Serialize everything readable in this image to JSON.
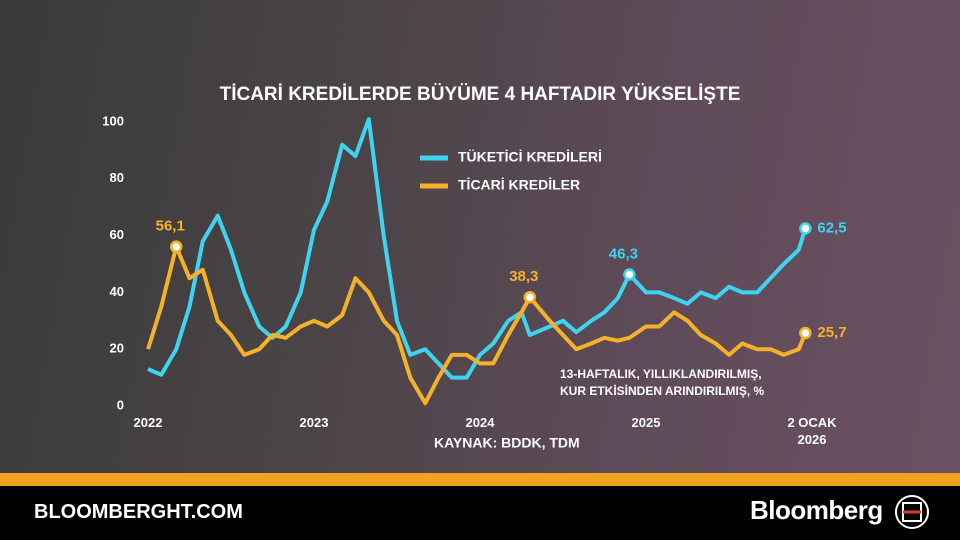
{
  "chart_data": {
    "type": "line",
    "title": "TİCARİ KREDİLERDE BÜYÜME 4 HAFTADIR YÜKSELİŞTE",
    "x": [
      2022.0,
      2022.08,
      2022.17,
      2022.25,
      2022.33,
      2022.42,
      2022.5,
      2022.58,
      2022.67,
      2022.75,
      2022.83,
      2022.92,
      2023.0,
      2023.08,
      2023.17,
      2023.25,
      2023.33,
      2023.42,
      2023.5,
      2023.58,
      2023.67,
      2023.75,
      2023.83,
      2023.92,
      2024.0,
      2024.08,
      2024.17,
      2024.25,
      2024.3,
      2024.42,
      2024.5,
      2024.58,
      2024.67,
      2024.75,
      2024.83,
      2024.9,
      2025.0,
      2025.08,
      2025.17,
      2025.25,
      2025.33,
      2025.42,
      2025.5,
      2025.58,
      2025.67,
      2025.75,
      2025.83,
      2025.92,
      2025.96
    ],
    "series": [
      {
        "name": "TÜKETİCİ KREDİLERİ",
        "color": "#3fd3f2",
        "values": [
          13,
          11,
          20,
          35,
          58,
          67,
          55,
          40,
          28,
          24,
          28,
          40,
          62,
          72,
          92,
          88,
          101,
          60,
          30,
          18,
          20,
          15,
          10,
          10,
          18,
          22,
          30,
          33,
          25,
          28,
          30,
          26,
          30,
          33,
          38,
          46.3,
          40,
          40,
          38,
          36,
          40,
          38,
          42,
          40,
          40,
          45,
          50,
          55,
          62.5
        ],
        "value_labels": [
          null,
          null,
          null,
          null,
          null,
          null,
          null,
          null,
          null,
          null,
          null,
          null,
          null,
          null,
          null,
          null,
          null,
          null,
          null,
          null,
          null,
          null,
          null,
          null,
          null,
          null,
          null,
          null,
          null,
          null,
          null,
          null,
          null,
          null,
          null,
          "46,3",
          null,
          null,
          null,
          null,
          null,
          null,
          null,
          null,
          null,
          null,
          null,
          null,
          "62,5"
        ]
      },
      {
        "name": "TİCARİ KREDİLER",
        "color": "#f5b228",
        "values": [
          20,
          35,
          56.1,
          45,
          48,
          30,
          25,
          18,
          20,
          25,
          24,
          28,
          30,
          28,
          32,
          45,
          40,
          30,
          25,
          10,
          1,
          10,
          18,
          18,
          15,
          15,
          25,
          33,
          38.3,
          30,
          25,
          20,
          22,
          24,
          23,
          24,
          28,
          28,
          33,
          30,
          25,
          22,
          18,
          22,
          20,
          20,
          18,
          20,
          25.7
        ],
        "value_labels": [
          null,
          null,
          "56,1",
          null,
          null,
          null,
          null,
          null,
          null,
          null,
          null,
          null,
          null,
          null,
          null,
          null,
          null,
          null,
          null,
          null,
          null,
          null,
          null,
          null,
          null,
          null,
          null,
          null,
          "38,3",
          null,
          null,
          null,
          null,
          null,
          null,
          null,
          null,
          null,
          null,
          null,
          null,
          null,
          null,
          null,
          null,
          null,
          null,
          null,
          "25,7"
        ]
      }
    ],
    "xlim": [
      2022,
      2026
    ],
    "xticks": [
      2022,
      2023,
      2024,
      2025,
      {
        "value": 2026,
        "label": "2 OCAK 2026"
      }
    ],
    "ylim": [
      0,
      100
    ],
    "yticks": [
      0,
      20,
      40,
      60,
      80,
      100
    ],
    "grid": false,
    "note": [
      "13-HAFTALIK, YILLIKLANDIRILMIŞ,",
      "KUR ETKİSİNDEN ARINDIRILMIŞ, %"
    ],
    "source": "KAYNAK: BDDK, TDM"
  },
  "footer": {
    "site": "BLOOMBERGHT.COM",
    "brand": "Bloomberg"
  }
}
